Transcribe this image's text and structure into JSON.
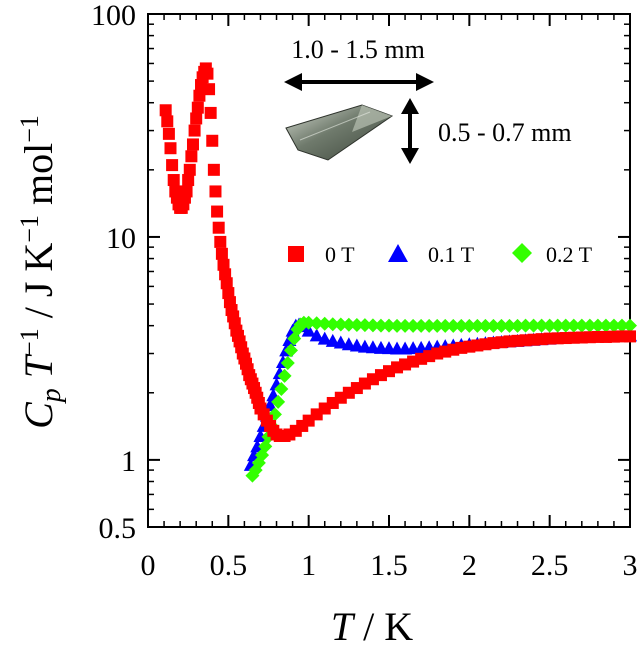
{
  "chart_data": {
    "type": "scatter",
    "title": "",
    "xlabel": {
      "var": "T",
      "unit": " / K"
    },
    "ylabel": {
      "var1": "C",
      "sub": "p",
      "var2": " T",
      "sup1": "−1",
      "mid": " / J K",
      "sup2": "−1",
      "mid2": " mol",
      "sup3": "−1"
    },
    "xlim": [
      0,
      3
    ],
    "ylim": [
      0.5,
      100
    ],
    "yscale": "log",
    "x_ticks": [
      0,
      0.5,
      1,
      1.5,
      2,
      2.5,
      3
    ],
    "x_tick_labels": [
      "0",
      "0.5",
      "1",
      "1.5",
      "2",
      "2.5",
      "3"
    ],
    "y_ticks": [
      0.5,
      1,
      10,
      100
    ],
    "y_tick_labels": [
      "0.5",
      "1",
      "10",
      "100"
    ],
    "grid": false,
    "legend_position": "center-right",
    "series": [
      {
        "name": "0 T",
        "marker": "square",
        "color": "#ff0000",
        "x": [
          0.11,
          0.12,
          0.13,
          0.14,
          0.15,
          0.16,
          0.17,
          0.18,
          0.19,
          0.2,
          0.21,
          0.22,
          0.23,
          0.24,
          0.25,
          0.26,
          0.27,
          0.28,
          0.29,
          0.3,
          0.31,
          0.32,
          0.33,
          0.34,
          0.35,
          0.36,
          0.37,
          0.38,
          0.39,
          0.4,
          0.41,
          0.42,
          0.43,
          0.44,
          0.45,
          0.46,
          0.47,
          0.48,
          0.49,
          0.5,
          0.51,
          0.52,
          0.53,
          0.54,
          0.55,
          0.56,
          0.57,
          0.58,
          0.59,
          0.6,
          0.61,
          0.62,
          0.63,
          0.64,
          0.65,
          0.66,
          0.67,
          0.68,
          0.69,
          0.7,
          0.72,
          0.74,
          0.76,
          0.78,
          0.8,
          0.82,
          0.85,
          0.88,
          0.92,
          0.96,
          1.0,
          1.05,
          1.1,
          1.15,
          1.2,
          1.25,
          1.3,
          1.35,
          1.4,
          1.45,
          1.5,
          1.55,
          1.6,
          1.65,
          1.7,
          1.75,
          1.8,
          1.85,
          1.9,
          1.95,
          2.0,
          2.05,
          2.1,
          2.15,
          2.2,
          2.25,
          2.3,
          2.35,
          2.4,
          2.45,
          2.5,
          2.55,
          2.6,
          2.65,
          2.7,
          2.75,
          2.8,
          2.85,
          2.9,
          2.95,
          3.0
        ],
        "y": [
          37,
          33,
          29,
          25,
          21,
          18,
          16,
          15,
          14,
          13.5,
          13.5,
          14,
          15,
          16,
          18,
          20,
          23,
          26,
          30,
          34,
          38,
          43,
          48,
          52,
          55,
          57,
          54,
          46,
          36,
          27,
          20,
          16,
          13,
          11,
          9.5,
          8.4,
          7.5,
          6.8,
          6.2,
          5.6,
          5.1,
          4.7,
          4.4,
          4.1,
          3.8,
          3.6,
          3.4,
          3.2,
          3.0,
          2.85,
          2.7,
          2.55,
          2.4,
          2.3,
          2.2,
          2.1,
          2.0,
          1.9,
          1.8,
          1.7,
          1.6,
          1.5,
          1.42,
          1.35,
          1.3,
          1.28,
          1.28,
          1.3,
          1.35,
          1.42,
          1.5,
          1.6,
          1.7,
          1.8,
          1.9,
          2.0,
          2.1,
          2.2,
          2.3,
          2.4,
          2.5,
          2.6,
          2.68,
          2.76,
          2.84,
          2.92,
          3.0,
          3.06,
          3.12,
          3.18,
          3.22,
          3.26,
          3.3,
          3.34,
          3.37,
          3.4,
          3.42,
          3.44,
          3.46,
          3.48,
          3.5,
          3.51,
          3.52,
          3.53,
          3.54,
          3.55,
          3.56,
          3.56,
          3.57,
          3.58,
          3.58
        ]
      },
      {
        "name": "0.1 T",
        "marker": "triangle",
        "color": "#0000ff",
        "x": [
          0.64,
          0.66,
          0.68,
          0.7,
          0.72,
          0.74,
          0.76,
          0.78,
          0.8,
          0.82,
          0.84,
          0.86,
          0.88,
          0.9,
          0.92,
          0.94,
          0.96,
          1.0,
          1.05,
          1.1,
          1.15,
          1.2,
          1.25,
          1.3,
          1.35,
          1.4,
          1.45,
          1.5,
          1.55,
          1.6,
          1.65,
          1.7,
          1.75,
          1.8,
          1.85,
          1.9,
          1.95,
          2.0,
          2.05,
          2.1,
          2.15,
          2.2,
          2.25,
          2.3,
          2.35,
          2.4,
          2.45,
          2.5,
          2.55,
          2.6,
          2.65,
          2.7,
          2.75,
          2.8,
          2.85,
          2.9,
          2.95,
          3.0
        ],
        "y": [
          0.95,
          1.05,
          1.15,
          1.28,
          1.42,
          1.58,
          1.76,
          1.95,
          2.18,
          2.45,
          2.75,
          3.1,
          3.45,
          3.8,
          4.0,
          4.05,
          3.98,
          3.8,
          3.62,
          3.5,
          3.42,
          3.36,
          3.3,
          3.26,
          3.22,
          3.2,
          3.18,
          3.17,
          3.16,
          3.16,
          3.17,
          3.18,
          3.2,
          3.22,
          3.24,
          3.26,
          3.28,
          3.3,
          3.32,
          3.34,
          3.36,
          3.38,
          3.4,
          3.42,
          3.44,
          3.46,
          3.48,
          3.5,
          3.52,
          3.54,
          3.56,
          3.57,
          3.58,
          3.59,
          3.6,
          3.61,
          3.61,
          3.62
        ]
      },
      {
        "name": "0.2 T",
        "marker": "diamond",
        "color": "#33ff00",
        "x": [
          0.65,
          0.67,
          0.69,
          0.71,
          0.73,
          0.75,
          0.77,
          0.79,
          0.81,
          0.83,
          0.85,
          0.87,
          0.89,
          0.91,
          0.93,
          0.95,
          0.97,
          1.0,
          1.05,
          1.1,
          1.15,
          1.2,
          1.25,
          1.3,
          1.35,
          1.4,
          1.45,
          1.5,
          1.55,
          1.6,
          1.65,
          1.7,
          1.75,
          1.8,
          1.85,
          1.9,
          1.95,
          2.0,
          2.05,
          2.1,
          2.15,
          2.2,
          2.25,
          2.3,
          2.35,
          2.4,
          2.45,
          2.5,
          2.55,
          2.6,
          2.65,
          2.7,
          2.75,
          2.8,
          2.85,
          2.9,
          2.95,
          3.0
        ],
        "y": [
          0.85,
          0.9,
          0.97,
          1.05,
          1.15,
          1.27,
          1.42,
          1.6,
          1.82,
          2.08,
          2.38,
          2.72,
          3.1,
          3.5,
          3.85,
          4.05,
          4.12,
          4.12,
          4.1,
          4.08,
          4.06,
          4.05,
          4.04,
          4.03,
          4.02,
          4.01,
          4.0,
          4.0,
          3.99,
          3.99,
          3.99,
          3.99,
          3.99,
          3.99,
          3.99,
          3.99,
          3.99,
          3.99,
          3.99,
          3.99,
          3.99,
          3.99,
          3.99,
          3.99,
          4.0,
          4.0,
          4.0,
          4.0,
          4.0,
          4.0,
          4.0,
          4.0,
          4.0,
          4.0,
          4.0,
          4.0,
          4.0,
          4.0
        ]
      }
    ],
    "annotations": {
      "length_label": "1.0 - 1.5 mm",
      "thickness_label": "0.5 - 0.7 mm"
    }
  }
}
